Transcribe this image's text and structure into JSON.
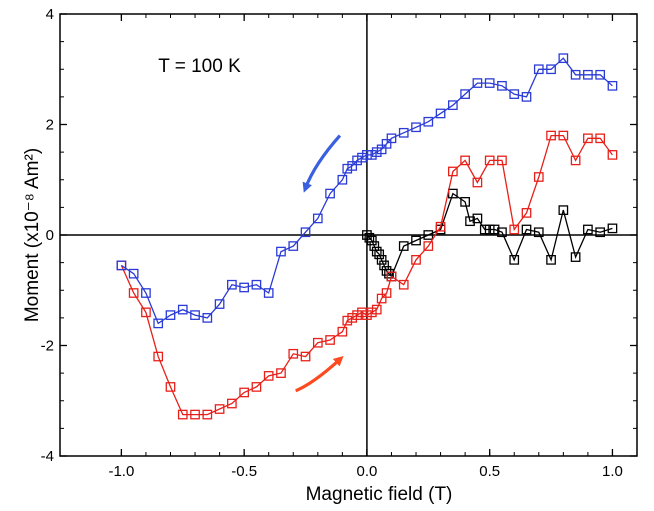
{
  "chart_data": {
    "type": "line",
    "title": "",
    "xlabel": "Magnetic field (T)",
    "ylabel": "Moment (x10⁻⁸ Am²)",
    "xlim": [
      -1.25,
      1.1
    ],
    "ylim": [
      -4,
      4
    ],
    "x_ticks": [
      -1.0,
      -0.5,
      0.0,
      0.5,
      1.0
    ],
    "x_tick_labels": [
      "-1.0",
      "-0.5",
      "0.0",
      "0.5",
      "1.0"
    ],
    "y_ticks": [
      -4,
      -2,
      0,
      2,
      4
    ],
    "y_tick_labels": [
      "-4",
      "-2",
      "0",
      "2",
      "4"
    ],
    "grid": false,
    "zero_lines": true,
    "annotations": [
      {
        "text": "T = 100 K",
        "x": -0.85,
        "y": 2.95
      }
    ],
    "arrows": [
      {
        "color": "#3a5fe0",
        "from": [
          -0.11,
          1.8
        ],
        "to": [
          -0.25,
          0.85
        ],
        "direction": "decreasing field"
      },
      {
        "color": "#ff4a20",
        "from": [
          -0.29,
          -2.82
        ],
        "to": [
          -0.11,
          -2.25
        ],
        "direction": "increasing field"
      }
    ],
    "series": [
      {
        "color": "#000000",
        "marker": "square",
        "x": [
          0.0,
          0.01,
          0.02,
          0.03,
          0.04,
          0.05,
          0.06,
          0.07,
          0.08,
          0.09,
          0.1,
          0.15,
          0.2,
          0.25,
          0.3,
          0.35,
          0.4,
          0.42,
          0.45,
          0.48,
          0.5,
          0.52,
          0.55,
          0.6,
          0.65,
          0.7,
          0.75,
          0.8,
          0.85,
          0.9,
          0.95,
          1.0
        ],
        "y": [
          0.0,
          -0.05,
          -0.1,
          -0.2,
          -0.3,
          -0.35,
          -0.45,
          -0.55,
          -0.65,
          -0.7,
          -0.75,
          -0.2,
          -0.1,
          0.0,
          0.1,
          0.75,
          0.6,
          0.25,
          0.3,
          0.1,
          0.1,
          0.1,
          0.05,
          -0.45,
          0.1,
          0.05,
          -0.45,
          0.45,
          -0.4,
          0.1,
          0.05,
          0.12
        ]
      },
      {
        "color": "#e8201a",
        "marker": "square",
        "x": [
          -1.0,
          -0.95,
          -0.9,
          -0.85,
          -0.8,
          -0.75,
          -0.7,
          -0.65,
          -0.6,
          -0.55,
          -0.5,
          -0.45,
          -0.4,
          -0.35,
          -0.3,
          -0.25,
          -0.2,
          -0.15,
          -0.1,
          -0.08,
          -0.06,
          -0.04,
          -0.02,
          0.0,
          0.02,
          0.04,
          0.06,
          0.08,
          0.1,
          0.15,
          0.2,
          0.25,
          0.3,
          0.35,
          0.4,
          0.45,
          0.5,
          0.55,
          0.6,
          0.65,
          0.7,
          0.75,
          0.8,
          0.85,
          0.9,
          0.95,
          1.0
        ],
        "y": [
          -0.55,
          -1.05,
          -1.4,
          -2.2,
          -2.75,
          -3.25,
          -3.25,
          -3.25,
          -3.15,
          -3.05,
          -2.85,
          -2.75,
          -2.55,
          -2.5,
          -2.15,
          -2.2,
          -1.95,
          -1.9,
          -1.75,
          -1.55,
          -1.5,
          -1.45,
          -1.4,
          -1.45,
          -1.4,
          -1.35,
          -1.15,
          -1.05,
          -0.75,
          -0.9,
          -0.45,
          -0.2,
          0.15,
          1.15,
          1.35,
          0.95,
          1.35,
          1.35,
          0.1,
          0.4,
          1.05,
          1.8,
          1.8,
          1.35,
          1.75,
          1.75,
          1.45
        ]
      },
      {
        "color": "#2a3bd6",
        "marker": "square",
        "x": [
          1.0,
          0.95,
          0.9,
          0.85,
          0.8,
          0.75,
          0.7,
          0.65,
          0.6,
          0.55,
          0.5,
          0.45,
          0.4,
          0.35,
          0.3,
          0.25,
          0.2,
          0.15,
          0.1,
          0.08,
          0.06,
          0.04,
          0.02,
          0.0,
          -0.02,
          -0.04,
          -0.06,
          -0.08,
          -0.1,
          -0.15,
          -0.2,
          -0.25,
          -0.3,
          -0.35,
          -0.4,
          -0.45,
          -0.5,
          -0.55,
          -0.6,
          -0.65,
          -0.7,
          -0.75,
          -0.8,
          -0.85,
          -0.9,
          -0.95,
          -1.0
        ],
        "y": [
          2.7,
          2.9,
          2.9,
          2.9,
          3.2,
          3.0,
          3.0,
          2.5,
          2.55,
          2.7,
          2.75,
          2.75,
          2.55,
          2.35,
          2.2,
          2.05,
          1.95,
          1.85,
          1.75,
          1.65,
          1.55,
          1.5,
          1.45,
          1.45,
          1.4,
          1.35,
          1.25,
          1.2,
          1.0,
          0.75,
          0.3,
          0.05,
          -0.2,
          -0.3,
          -1.05,
          -0.9,
          -0.95,
          -0.9,
          -1.25,
          -1.5,
          -1.45,
          -1.35,
          -1.45,
          -1.6,
          -1.05,
          -0.7,
          -0.55
        ]
      }
    ]
  }
}
